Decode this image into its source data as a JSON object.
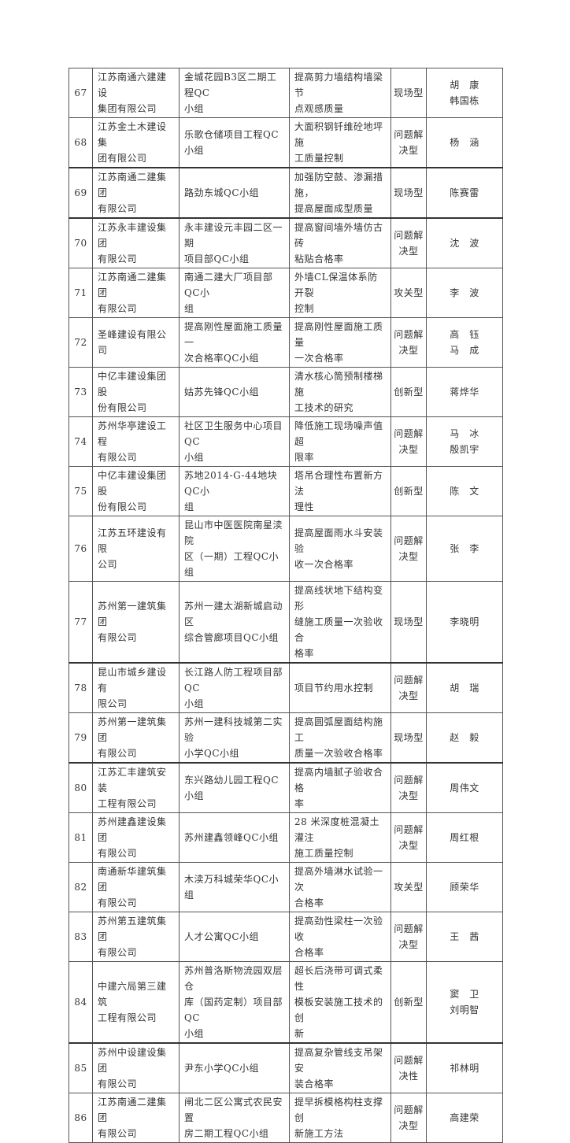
{
  "rows": [
    {
      "no": "67",
      "company": "江苏南通六建建设\n集团有限公司",
      "group": "金城花园B3区二期工程QC\n小组",
      "topic": "提高剪力墙结构墙梁节\n点观感质量",
      "type": "现场型",
      "person": "胡　康\n韩国栋"
    },
    {
      "no": "68",
      "company": "江苏金土木建设集\n团有限公司",
      "group": "乐歌仓储项目工程QC小组",
      "topic": "大面积钢钎维砼地坪施\n工质量控制",
      "type": "问题解\n决型",
      "person": "杨　涵"
    },
    {
      "no": "69",
      "company": "江苏南通二建集团\n有限公司",
      "group": "路劲东城QC小组",
      "topic": "加强防空鼓、渗漏措施，\n提高屋面成型质量",
      "type": "现场型",
      "person": "陈赛雷"
    },
    {
      "no": "70",
      "company": "江苏永丰建设集团\n有限公司",
      "group": "永丰建设元丰园二区一期\n项目部QC小组",
      "topic": "提高窗间墙外墙仿古砖\n粘贴合格率",
      "type": "问题解\n决型",
      "person": "沈　波"
    },
    {
      "no": "71",
      "company": "江苏南通二建集团\n有限公司",
      "group": "南通二建大厂项目部QC小\n组",
      "topic": "外墙CL保温体系防开裂\n控制",
      "type": "攻关型",
      "person": "李　波"
    },
    {
      "no": "72",
      "company": "圣峰建设有限公司",
      "group": "提高刚性屋面施工质量一\n次合格率QC小组",
      "topic": "提高刚性屋面施工质量\n一次合格率",
      "type": "问题解\n决型",
      "person": "高　钰\n马　成"
    },
    {
      "no": "73",
      "company": "中亿丰建设集团股\n份有限公司",
      "group": "姑苏先锋QC小组",
      "topic": "清水核心筒预制楼梯施\n工技术的研究",
      "type": "创新型",
      "person": "蒋烨华"
    },
    {
      "no": "74",
      "company": "苏州华亭建设工程\n有限公司",
      "group": "社区卫生服务中心项目 QC\n小组",
      "topic": "降低施工现场噪声值超\n限率",
      "type": "问题解\n决型",
      "person": "马　冰\n殷凯宇"
    },
    {
      "no": "75",
      "company": "中亿丰建设集团股\n份有限公司",
      "group": "苏地2014-G-44地块QC小\n组",
      "topic": "塔吊合理性布置新方法\n理性",
      "type": "创新型",
      "person": "陈　文"
    },
    {
      "no": "76",
      "company": "江苏五环建设有限\n公司",
      "group": "昆山市中医医院南星渎院\n区（一期）工程QC小组",
      "topic": "提高屋面雨水斗安装验\n收一次合格率",
      "type": "问题解\n决型",
      "person": "张　李"
    },
    {
      "no": "77",
      "company": "苏州第一建筑集团\n有限公司",
      "group": "苏州一建太湖新城启动区\n综合管廊项目QC小组",
      "topic": "提高线状地下结构变形\n缝施工质量一次验收合\n格率",
      "type": "现场型",
      "person": "李晓明"
    },
    {
      "no": "78",
      "company": "昆山市城乡建设有\n限公司",
      "group": "长江路人防工程项目部 QC\n小组",
      "topic": "项目节约用水控制",
      "type": "问题解\n决型",
      "person": "胡　瑞"
    },
    {
      "no": "79",
      "company": "苏州第一建筑集团\n有限公司",
      "group": "苏州一建科技城第二实验\n小学QC小组",
      "topic": "提高圆弧屋面结构施工\n质量一次验收合格率",
      "type": "现场型",
      "person": "赵　毅"
    },
    {
      "no": "80",
      "company": "江苏汇丰建筑安装\n工程有限公司",
      "group": "东兴路幼儿园工程QC小组",
      "topic": "提高内墙腻子验收合格\n率",
      "type": "问题解\n决型",
      "person": "周伟文"
    },
    {
      "no": "81",
      "company": "苏州建鑫建设集团\n有限公司",
      "group": "苏州建鑫领峰QC小组",
      "topic": "28 米深度桩混凝土灌注\n施工质量控制",
      "type": "问题解\n决型",
      "person": "周红根"
    },
    {
      "no": "82",
      "company": "南通新华建筑集团\n有限公司",
      "group": "木渎万科城荣华QC小组",
      "topic": "提高外墙淋水试验一次\n合格率",
      "type": "攻关型",
      "person": "顾荣华"
    },
    {
      "no": "83",
      "company": "苏州第五建筑集团\n有限公司",
      "group": "人才公寓QC小组",
      "topic": "提高劲性梁柱一次验收\n合格率",
      "type": "问题解\n决型",
      "person": "王　茜"
    },
    {
      "no": "84",
      "company": "中建六局第三建筑\n工程有限公司",
      "group": "苏州普洛斯物流园双层仓\n库（国药定制）项目部 QC\n小组",
      "topic": "超长后浇带可调式柔性\n模板安装施工技术的创\n新",
      "type": "创新型",
      "person": "窦　卫\n刘明智"
    },
    {
      "no": "85",
      "company": "苏州中设建设集团\n有限公司",
      "group": "尹东小学QC小组",
      "topic": "提高复杂管线支吊架安\n装合格率",
      "type": "问题解\n决性",
      "person": "祁林明"
    },
    {
      "no": "86",
      "company": "江苏南通二建集团\n有限公司",
      "group": "闸北二区公寓式农民安置\n房二期工程QC小组",
      "topic": "提早拆模格构柱支撑创\n新施工方法",
      "type": "问题解\n决型",
      "person": "高建荣"
    }
  ]
}
